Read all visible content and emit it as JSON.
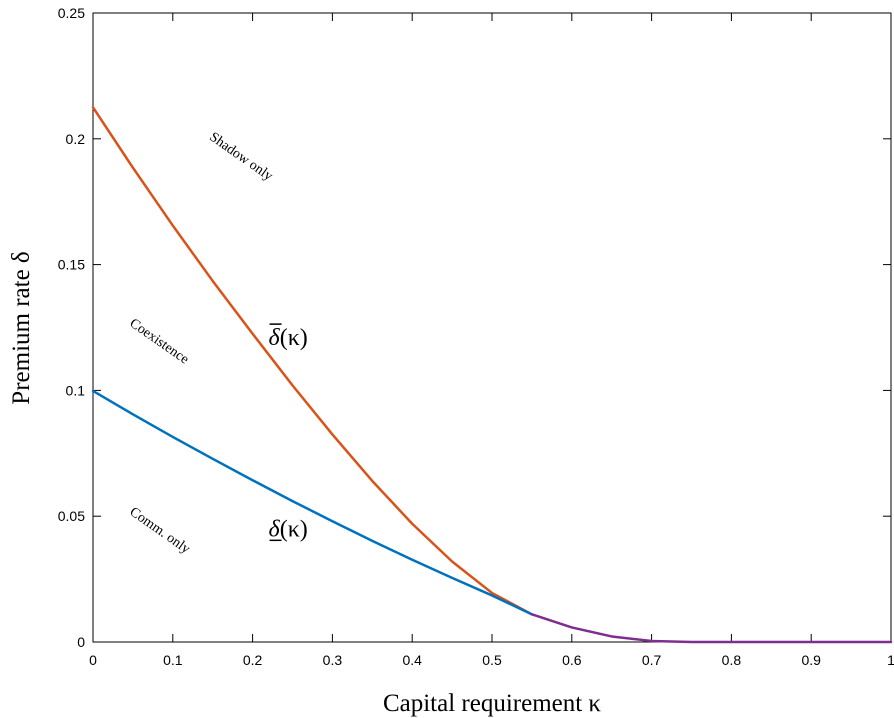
{
  "colors": {
    "upper_curve": "#D95319",
    "lower_curve": "#0072BD",
    "merged_curve": "#7E2F8E",
    "axis": "#000000"
  },
  "chart_data": {
    "type": "line",
    "xlabel": "Capital requirement κ",
    "ylabel": "Premium rate δ",
    "xlim": [
      0,
      1
    ],
    "ylim": [
      0,
      0.25
    ],
    "xticks": [
      0,
      0.1,
      0.2,
      0.3,
      0.4,
      0.5,
      0.6,
      0.7,
      0.8,
      0.9,
      1
    ],
    "xtick_labels": [
      "0",
      "0.1",
      "0.2",
      "0.3",
      "0.4",
      "0.5",
      "0.6",
      "0.7",
      "0.8",
      "0.9",
      "1"
    ],
    "yticks": [
      0,
      0.05,
      0.1,
      0.15,
      0.2,
      0.25
    ],
    "ytick_labels": [
      "0",
      "0.05",
      "0.1",
      "0.15",
      "0.2",
      "0.25"
    ],
    "grid": false,
    "series": [
      {
        "label_text": "δ̄(κ)",
        "color": "#D95319",
        "points": [
          [
            0,
            0.2125
          ],
          [
            0.05,
            0.1885
          ],
          [
            0.1,
            0.1655
          ],
          [
            0.15,
            0.1435
          ],
          [
            0.2,
            0.1225
          ],
          [
            0.25,
            0.102
          ],
          [
            0.3,
            0.0825
          ],
          [
            0.35,
            0.064
          ],
          [
            0.4,
            0.047
          ],
          [
            0.45,
            0.032
          ],
          [
            0.5,
            0.0195
          ],
          [
            0.55,
            0.011
          ]
        ]
      },
      {
        "label_text": "δ(κ)",
        "color": "#0072BD",
        "points": [
          [
            0,
            0.0998
          ],
          [
            0.05,
            0.0905
          ],
          [
            0.1,
            0.0815
          ],
          [
            0.15,
            0.0728
          ],
          [
            0.2,
            0.0643
          ],
          [
            0.25,
            0.056
          ],
          [
            0.3,
            0.048
          ],
          [
            0.35,
            0.0402
          ],
          [
            0.4,
            0.0327
          ],
          [
            0.45,
            0.0255
          ],
          [
            0.5,
            0.0185
          ],
          [
            0.55,
            0.011
          ]
        ]
      },
      {
        "label_text": "",
        "color": "#7E2F8E",
        "points": [
          [
            0.55,
            0.011
          ],
          [
            0.6,
            0.0058
          ],
          [
            0.65,
            0.0022
          ],
          [
            0.7,
            0.0004
          ],
          [
            0.75,
            0.0
          ],
          [
            0.8,
            0.0
          ],
          [
            0.85,
            0.0
          ],
          [
            0.9,
            0.0
          ],
          [
            0.95,
            0.0
          ],
          [
            1.0,
            0.0
          ]
        ]
      }
    ],
    "annotations": [
      {
        "text": "Shadow only",
        "x": 0.145,
        "y": 0.2,
        "rotation": 35
      },
      {
        "text": "Coexistence",
        "x": 0.045,
        "y": 0.126,
        "rotation": 35
      },
      {
        "text": "Comm. only",
        "x": 0.045,
        "y": 0.051,
        "rotation": 35
      }
    ],
    "curve_labels": [
      {
        "series": 0,
        "base": "δ",
        "suffix": "(κ)",
        "mark": "overline",
        "x": 0.22,
        "y": 0.118
      },
      {
        "series": 1,
        "base": "δ",
        "suffix": "(κ)",
        "mark": "underline",
        "x": 0.22,
        "y": 0.042
      }
    ]
  }
}
